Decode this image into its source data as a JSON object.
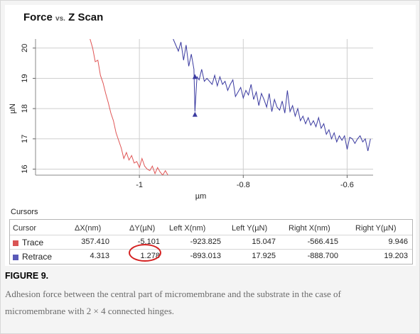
{
  "chart_data": {
    "type": "line",
    "title": "Force",
    "title_vs": "vs.",
    "title_suffix": "Z Scan",
    "xlabel": "µm",
    "ylabel": "µN",
    "xlim": [
      -1.2,
      -0.55
    ],
    "ylim": [
      15.8,
      20.3
    ],
    "x_ticks": [
      -1,
      -0.8,
      -0.6
    ],
    "x_tick_labels": [
      "-1",
      "-0.8",
      "-0.6"
    ],
    "y_ticks": [
      16,
      17,
      18,
      19,
      20
    ],
    "y_tick_labels": [
      "16",
      "17",
      "18",
      "19",
      "20"
    ],
    "grid": true,
    "series": [
      {
        "name": "Trace",
        "color": "#e05555",
        "x": [
          -1.095,
          -1.09,
          -1.085,
          -1.08,
          -1.075,
          -1.07,
          -1.065,
          -1.06,
          -1.055,
          -1.05,
          -1.045,
          -1.04,
          -1.035,
          -1.03,
          -1.025,
          -1.02,
          -1.015,
          -1.01,
          -1.005,
          -1.0,
          -0.995,
          -0.99,
          -0.985,
          -0.98,
          -0.975,
          -0.97,
          -0.965,
          -0.96,
          -0.955,
          -0.95,
          -0.945
        ],
        "y": [
          20.3,
          20.0,
          19.55,
          19.6,
          19.1,
          18.85,
          18.5,
          18.2,
          17.85,
          17.6,
          17.2,
          16.95,
          16.7,
          16.35,
          16.55,
          16.3,
          16.45,
          16.2,
          16.25,
          16.05,
          16.35,
          16.1,
          16.0,
          15.95,
          16.1,
          15.85,
          16.05,
          15.9,
          15.8,
          15.95,
          15.8
        ]
      },
      {
        "name": "Retrace",
        "color": "#3a3aa0",
        "x": [
          -0.935,
          -0.93,
          -0.925,
          -0.92,
          -0.915,
          -0.91,
          -0.905,
          -0.9,
          -0.895,
          -0.893,
          -0.89,
          -0.889,
          -0.885,
          -0.88,
          -0.875,
          -0.87,
          -0.865,
          -0.86,
          -0.855,
          -0.85,
          -0.845,
          -0.84,
          -0.835,
          -0.83,
          -0.825,
          -0.82,
          -0.815,
          -0.81,
          -0.805,
          -0.8,
          -0.795,
          -0.79,
          -0.785,
          -0.78,
          -0.775,
          -0.77,
          -0.765,
          -0.76,
          -0.755,
          -0.75,
          -0.745,
          -0.74,
          -0.735,
          -0.73,
          -0.725,
          -0.72,
          -0.715,
          -0.71,
          -0.705,
          -0.7,
          -0.695,
          -0.69,
          -0.685,
          -0.68,
          -0.675,
          -0.67,
          -0.665,
          -0.66,
          -0.655,
          -0.65,
          -0.645,
          -0.64,
          -0.635,
          -0.63,
          -0.625,
          -0.62,
          -0.615,
          -0.61,
          -0.605,
          -0.6,
          -0.595,
          -0.59,
          -0.585,
          -0.58,
          -0.575,
          -0.57,
          -0.565,
          -0.56,
          -0.555
        ],
        "y": [
          20.3,
          20.1,
          19.9,
          20.2,
          19.6,
          20.1,
          19.4,
          19.8,
          19.3,
          17.9,
          18.8,
          19.05,
          18.95,
          19.3,
          18.9,
          19.0,
          18.9,
          18.8,
          19.1,
          18.75,
          19.05,
          18.8,
          18.9,
          18.6,
          18.8,
          18.95,
          18.4,
          18.55,
          18.7,
          18.35,
          18.6,
          18.45,
          18.8,
          18.3,
          18.55,
          18.1,
          18.5,
          18.3,
          18.05,
          18.5,
          17.9,
          18.3,
          18.05,
          17.95,
          18.25,
          17.85,
          18.6,
          17.9,
          18.1,
          17.75,
          18.0,
          17.6,
          17.75,
          17.5,
          17.7,
          17.45,
          17.6,
          17.4,
          17.7,
          17.35,
          17.5,
          17.15,
          17.3,
          17.0,
          17.2,
          16.9,
          17.1,
          16.95,
          17.1,
          16.65,
          17.05,
          17.0,
          16.85,
          17.0,
          17.1,
          16.9,
          17.0,
          16.6,
          17.0
        ]
      }
    ],
    "markers": [
      {
        "x": -0.893,
        "y": 19.05,
        "shape": "triangle-up",
        "color": "#3a3aa0"
      },
      {
        "x": -0.893,
        "y": 17.8,
        "shape": "triangle-up",
        "color": "#3a3aa0"
      }
    ]
  },
  "cursors": {
    "label": "Cursors",
    "headers": [
      "Cursor",
      "ΔX(nm)",
      "ΔY(µN)",
      "Left X(nm)",
      "Left Y(µN)",
      "Right X(nm)",
      "Right Y(µN)"
    ],
    "rows": [
      {
        "name": "Trace",
        "color": "#d95454",
        "dx": "357.410",
        "dy": "-5.101",
        "left_x": "-923.825",
        "left_y": "15.047",
        "right_x": "-566.415",
        "right_y": "9.946"
      },
      {
        "name": "Retrace",
        "color": "#5a5ab8",
        "dx": "4.313",
        "dy": "1.278",
        "left_x": "-893.013",
        "left_y": "17.925",
        "right_x": "-888.700",
        "right_y": "19.203"
      }
    ]
  },
  "caption": {
    "title": "FIGURE 9.",
    "text": "Adhesion force between the central part of micromembrane and the substrate in the case of micromembrane with 2 × 4 connected hinges."
  }
}
